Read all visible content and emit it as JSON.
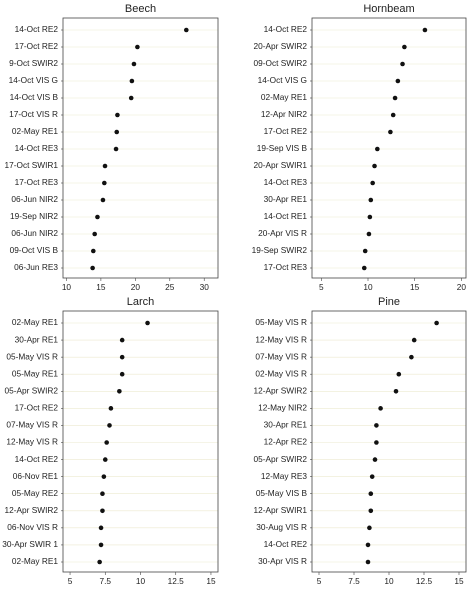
{
  "chart_data": [
    {
      "type": "scatter",
      "title": "Beech",
      "xlim": [
        9.5,
        32
      ],
      "xticks": [
        10,
        15,
        20,
        25,
        30
      ],
      "categories": [
        "14-Oct RE2",
        "17-Oct RE2",
        "9-Oct SWIR2",
        "14-Oct VIS G",
        "14-Oct VIS B",
        "17-Oct VIS R",
        "02-May RE1",
        "14-Oct RE3",
        "17-Oct SWIR1",
        "17-Oct RE3",
        "06-Jun NIR2",
        "19-Sep NIR2",
        "06-Jun NIR2",
        "09-Oct VIS B",
        "06-Jun RE3"
      ],
      "values": [
        27.4,
        20.3,
        19.8,
        19.5,
        19.4,
        17.4,
        17.3,
        17.2,
        15.6,
        15.5,
        15.3,
        14.5,
        14.1,
        13.9,
        13.8
      ],
      "grid": "horizontal"
    },
    {
      "type": "scatter",
      "title": "Hornbeam",
      "xlim": [
        4,
        20.5
      ],
      "xticks": [
        5,
        10,
        15,
        20
      ],
      "categories": [
        "14-Oct RE2",
        "20-Apr SWIR2",
        "09-Oct SWIR2",
        "14-Oct VIS G",
        "02-May RE1",
        "12-Apr NIR2",
        "17-Oct RE2",
        "19-Sep VIS B",
        "20-Apr SWIR1",
        "14-Oct RE3",
        "30-Apr RE1",
        "14-Oct RE1",
        "20-Apr VIS R",
        "19-Sep SWIR2",
        "17-Oct RE3"
      ],
      "values": [
        16.1,
        13.9,
        13.7,
        13.2,
        12.9,
        12.7,
        12.4,
        11.0,
        10.7,
        10.5,
        10.3,
        10.2,
        10.1,
        9.7,
        9.6
      ],
      "grid": "horizontal"
    },
    {
      "type": "scatter",
      "title": "Larch",
      "xlim": [
        4.5,
        15.5
      ],
      "xticks": [
        5,
        7.5,
        10,
        12.5,
        15
      ],
      "categories": [
        "02-May RE1",
        "30-Apr RE1",
        "05-May VIS R",
        "05-May RE1",
        "05-Apr SWIR2",
        "17-Oct RE2",
        "07-May VIS R",
        "12-May VIS R",
        "14-Oct RE2",
        "06-Nov RE1",
        "05-May RE2",
        "12-Apr SWIR2",
        "06-Nov VIS R",
        "30-Apr SWIR 1",
        "02-May RE1"
      ],
      "values": [
        10.5,
        8.7,
        8.7,
        8.7,
        8.5,
        7.9,
        7.8,
        7.6,
        7.5,
        7.4,
        7.3,
        7.3,
        7.2,
        7.2,
        7.1
      ],
      "grid": "horizontal"
    },
    {
      "type": "scatter",
      "title": "Pine",
      "xlim": [
        4.5,
        15.5
      ],
      "xticks": [
        5,
        7.5,
        10,
        12.5,
        15
      ],
      "categories": [
        "05-May VIS R",
        "12-May VIS R",
        "07-May VIS R",
        "02-May VIS R",
        "12-Apr SWIR2",
        "12-May NIR2",
        "30-Apr RE1",
        "12-Apr RE2",
        "05-Apr SWIR2",
        "12-May RE3",
        "05-May VIS B",
        "12-Apr SWIR1",
        "30-Aug VIS R",
        "14-Oct RE2",
        "30-Apr VIS R"
      ],
      "values": [
        13.4,
        11.8,
        11.6,
        10.7,
        10.5,
        9.4,
        9.1,
        9.1,
        9.0,
        8.8,
        8.7,
        8.7,
        8.6,
        8.5,
        8.5
      ],
      "grid": "horizontal"
    }
  ]
}
